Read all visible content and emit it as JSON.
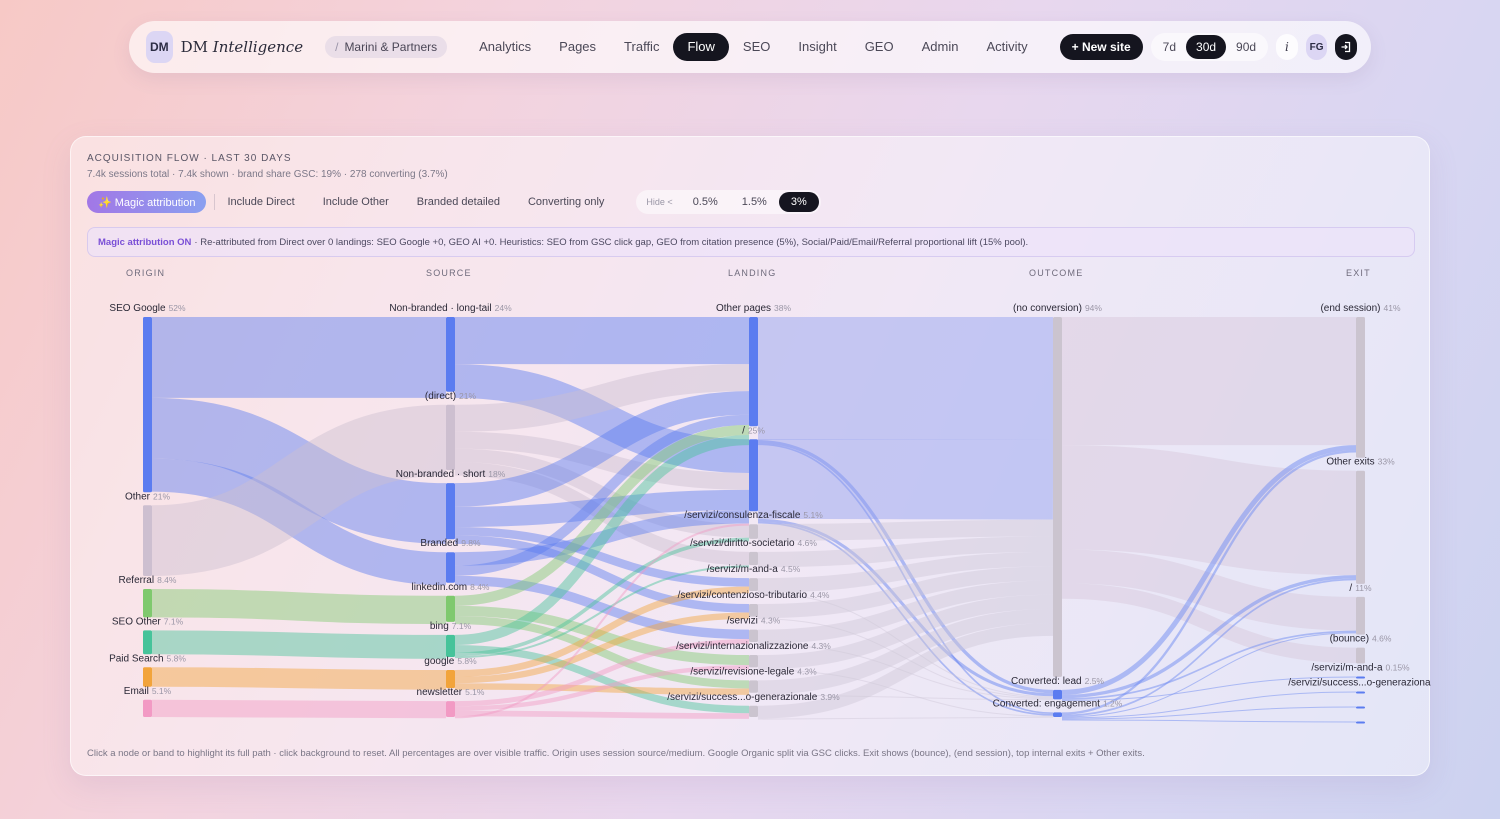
{
  "nav": {
    "logo": "DM",
    "brand_prefix": "DM ",
    "brand_italic": "Intelligence",
    "crumb_sep": "/",
    "crumb": "Marini & Partners",
    "tabs": [
      {
        "label": "Analytics",
        "active": false
      },
      {
        "label": "Pages",
        "active": false
      },
      {
        "label": "Traffic",
        "active": false
      },
      {
        "label": "Flow",
        "active": true
      },
      {
        "label": "SEO",
        "active": false
      },
      {
        "label": "Insight",
        "active": false
      },
      {
        "label": "GEO",
        "active": false
      },
      {
        "label": "Admin",
        "active": false
      },
      {
        "label": "Activity",
        "active": false
      }
    ],
    "new_site": "+ New site",
    "ranges": [
      {
        "label": "7d",
        "active": false
      },
      {
        "label": "30d",
        "active": true
      },
      {
        "label": "90d",
        "active": false
      }
    ],
    "info": "i",
    "user": "FG",
    "logout_icon": "logout-icon"
  },
  "card": {
    "title": "ACQUISITION FLOW · LAST 30 DAYS",
    "subtitle": "7.4k sessions total · 7.4k shown · brand share GSC: 19% · 278 converting (3.7%)",
    "magic_label": "✨ Magic attribution",
    "toggles": [
      "Include Direct",
      "Include Other",
      "Branded detailed",
      "Converting only"
    ],
    "hide_label": "Hide <",
    "hide_options": [
      {
        "label": "0.5%",
        "active": false
      },
      {
        "label": "1.5%",
        "active": false
      },
      {
        "label": "3%",
        "active": true
      }
    ],
    "notice_bold": "Magic attribution ON",
    "notice_text": "· Re-attributed from Direct over 0 landings: SEO Google +0, GEO AI +0. Heuristics: SEO from GSC click gap, GEO from citation presence (5%), Social/Paid/Email/Referral proportional lift (15% pool).",
    "columns": [
      "ORIGIN",
      "SOURCE",
      "LANDING",
      "OUTCOME",
      "EXIT"
    ],
    "footer": "Click a node or band to highlight its full path · click background to reset. All percentages are over visible traffic. Origin uses session source/medium. Google Organic split via GSC clicks. Exit shows (bounce), (end session), top internal exits + Other exits."
  },
  "colors": {
    "seo": "#5b7cf0",
    "other": "#cdbfd0",
    "referral": "#7fc96e",
    "seo_other": "#46c39a",
    "paid": "#f2a43b",
    "email": "#f29ac4",
    "neutral": "#cbc4cf",
    "lead": "#5b7cf0",
    "active_dark": "#15151f",
    "magic_purple": "#7a4fd6"
  },
  "chart_data": {
    "type": "sankey",
    "columns": [
      "ORIGIN",
      "SOURCE",
      "LANDING",
      "OUTCOME",
      "EXIT"
    ],
    "nodes": [
      {
        "id": "o_seo",
        "col": 0,
        "label": "SEO Google",
        "pct": "52%",
        "value": 52,
        "color": "#5b7cf0"
      },
      {
        "id": "o_other",
        "col": 0,
        "label": "Other",
        "pct": "21%",
        "value": 21,
        "color": "#cdbfd0"
      },
      {
        "id": "o_ref",
        "col": 0,
        "label": "Referral",
        "pct": "8.4%",
        "value": 8.4,
        "color": "#7fc96e"
      },
      {
        "id": "o_seoo",
        "col": 0,
        "label": "SEO Other",
        "pct": "7.1%",
        "value": 7.1,
        "color": "#46c39a"
      },
      {
        "id": "o_paid",
        "col": 0,
        "label": "Paid Search",
        "pct": "5.8%",
        "value": 5.8,
        "color": "#f2a43b"
      },
      {
        "id": "o_email",
        "col": 0,
        "label": "Email",
        "pct": "5.1%",
        "value": 5.1,
        "color": "#f29ac4"
      },
      {
        "id": "s_long",
        "col": 1,
        "label": "Non-branded · long-tail",
        "pct": "24%",
        "value": 24,
        "color": "#5b7cf0"
      },
      {
        "id": "s_direct",
        "col": 1,
        "label": "(direct)",
        "pct": "21%",
        "value": 21,
        "color": "#cdbfd0"
      },
      {
        "id": "s_short",
        "col": 1,
        "label": "Non-branded · short",
        "pct": "18%",
        "value": 18,
        "color": "#5b7cf0"
      },
      {
        "id": "s_brand",
        "col": 1,
        "label": "Branded",
        "pct": "9.8%",
        "value": 9.8,
        "color": "#5b7cf0"
      },
      {
        "id": "s_li",
        "col": 1,
        "label": "linkedin.com",
        "pct": "8.4%",
        "value": 8.4,
        "color": "#7fc96e"
      },
      {
        "id": "s_bing",
        "col": 1,
        "label": "bing",
        "pct": "7.1%",
        "value": 7.1,
        "color": "#46c39a"
      },
      {
        "id": "s_google",
        "col": 1,
        "label": "google",
        "pct": "5.8%",
        "value": 5.8,
        "color": "#f2a43b"
      },
      {
        "id": "s_news",
        "col": 1,
        "label": "newsletter",
        "pct": "5.1%",
        "value": 5.1,
        "color": "#f29ac4"
      },
      {
        "id": "l_other",
        "col": 2,
        "label": "Other pages",
        "pct": "38%",
        "value": 38,
        "color": "#5b7cf0"
      },
      {
        "id": "l_root",
        "col": 2,
        "label": "/",
        "pct": "25%",
        "value": 25,
        "color": "#5b7cf0"
      },
      {
        "id": "l_cf",
        "col": 2,
        "label": "/servizi/consulenza-fiscale",
        "pct": "5.1%",
        "value": 5.1,
        "color": "#cbc4cf"
      },
      {
        "id": "l_ds",
        "col": 2,
        "label": "/servizi/diritto-societario",
        "pct": "4.6%",
        "value": 4.6,
        "color": "#cbc4cf"
      },
      {
        "id": "l_ma",
        "col": 2,
        "label": "/servizi/m-and-a",
        "pct": "4.5%",
        "value": 4.5,
        "color": "#cbc4cf"
      },
      {
        "id": "l_ct",
        "col": 2,
        "label": "/servizi/contenzioso-tributario",
        "pct": "4.4%",
        "value": 4.4,
        "color": "#cbc4cf"
      },
      {
        "id": "l_serv",
        "col": 2,
        "label": "/servizi",
        "pct": "4.3%",
        "value": 4.3,
        "color": "#cbc4cf"
      },
      {
        "id": "l_int",
        "col": 2,
        "label": "/servizi/internazionalizzazione",
        "pct": "4.3%",
        "value": 4.3,
        "color": "#cbc4cf"
      },
      {
        "id": "l_rl",
        "col": 2,
        "label": "/servizi/revisione-legale",
        "pct": "4.3%",
        "value": 4.3,
        "color": "#cbc4cf"
      },
      {
        "id": "l_sg",
        "col": 2,
        "label": "/servizi/success...o-generazionale",
        "pct": "3.9%",
        "value": 3.9,
        "color": "#cbc4cf"
      },
      {
        "id": "c_none",
        "col": 3,
        "label": "(no conversion)",
        "pct": "94%",
        "value": 94,
        "color": "#cbc4cf"
      },
      {
        "id": "c_lead",
        "col": 3,
        "label": "Converted: lead",
        "pct": "2.5%",
        "value": 2.5,
        "color": "#5b7cf0"
      },
      {
        "id": "c_eng",
        "col": 3,
        "label": "Converted: engagement",
        "pct": "1.2%",
        "value": 1.2,
        "color": "#5b7cf0"
      },
      {
        "id": "e_end",
        "col": 4,
        "label": "(end session)",
        "pct": "41%",
        "value": 41,
        "color": "#cbc4cf"
      },
      {
        "id": "e_other",
        "col": 4,
        "label": "Other exits",
        "pct": "33%",
        "value": 33,
        "color": "#cbc4cf"
      },
      {
        "id": "e_root",
        "col": 4,
        "label": "/",
        "pct": "11%",
        "value": 11,
        "color": "#cbc4cf"
      },
      {
        "id": "e_bounce",
        "col": 4,
        "label": "(bounce)",
        "pct": "4.6%",
        "value": 4.6,
        "color": "#cbc4cf"
      },
      {
        "id": "e_ma",
        "col": 4,
        "label": "/servizi/m-and-a",
        "pct": "0.15%",
        "value": 0.15,
        "color": "#5b7cf0"
      },
      {
        "id": "e_sg",
        "col": 4,
        "label": "/servizi/success...o-generazional",
        "pct": "",
        "value": 0.1,
        "color": "#5b7cf0"
      },
      {
        "id": "e_x1",
        "col": 4,
        "label": "",
        "pct": "",
        "value": 0.1,
        "color": "#5b7cf0"
      },
      {
        "id": "e_x2",
        "col": 4,
        "label": "",
        "pct": "",
        "value": 0.1,
        "color": "#5b7cf0"
      }
    ],
    "links": [
      {
        "s": "o_seo",
        "t": "s_long",
        "v": 24
      },
      {
        "s": "o_seo",
        "t": "s_short",
        "v": 18
      },
      {
        "s": "o_seo",
        "t": "s_brand",
        "v": 9.8
      },
      {
        "s": "o_other",
        "t": "s_direct",
        "v": 21
      },
      {
        "s": "o_ref",
        "t": "s_li",
        "v": 8.4
      },
      {
        "s": "o_seoo",
        "t": "s_bing",
        "v": 7.1
      },
      {
        "s": "o_paid",
        "t": "s_google",
        "v": 5.8
      },
      {
        "s": "o_email",
        "t": "s_news",
        "v": 5.1
      },
      {
        "s": "s_long",
        "t": "l_other",
        "v": 14
      },
      {
        "s": "s_long",
        "t": "l_root",
        "v": 10
      },
      {
        "s": "s_direct",
        "t": "l_other",
        "v": 8
      },
      {
        "s": "s_direct",
        "t": "l_root",
        "v": 5
      },
      {
        "s": "s_direct",
        "t": "l_cf",
        "v": 4
      },
      {
        "s": "s_direct",
        "t": "l_ds",
        "v": 4
      },
      {
        "s": "s_short",
        "t": "l_other",
        "v": 7
      },
      {
        "s": "s_short",
        "t": "l_root",
        "v": 6
      },
      {
        "s": "s_short",
        "t": "l_ma",
        "v": 2.5
      },
      {
        "s": "s_short",
        "t": "l_ct",
        "v": 2.5
      },
      {
        "s": "s_brand",
        "t": "l_root",
        "v": 4
      },
      {
        "s": "s_brand",
        "t": "l_other",
        "v": 3
      },
      {
        "s": "s_brand",
        "t": "l_serv",
        "v": 2.8
      },
      {
        "s": "s_li",
        "t": "l_other",
        "v": 3
      },
      {
        "s": "s_li",
        "t": "l_int",
        "v": 3
      },
      {
        "s": "s_li",
        "t": "l_rl",
        "v": 2.4
      },
      {
        "s": "s_bing",
        "t": "l_other",
        "v": 3
      },
      {
        "s": "s_bing",
        "t": "l_sg",
        "v": 2.2
      },
      {
        "s": "s_bing",
        "t": "l_cf",
        "v": 1.1
      },
      {
        "s": "s_bing",
        "t": "l_ds",
        "v": 0.6
      },
      {
        "s": "s_google",
        "t": "l_ma",
        "v": 2
      },
      {
        "s": "s_google",
        "t": "l_ct",
        "v": 1.9
      },
      {
        "s": "s_google",
        "t": "l_rl",
        "v": 1.9
      },
      {
        "s": "s_news",
        "t": "l_serv",
        "v": 1.5
      },
      {
        "s": "s_news",
        "t": "l_int",
        "v": 1.3
      },
      {
        "s": "s_news",
        "t": "l_sg",
        "v": 1.7
      },
      {
        "s": "s_news",
        "t": "l_root",
        "v": 0.6
      },
      {
        "s": "l_other",
        "t": "c_none",
        "v": 36.5
      },
      {
        "s": "l_other",
        "t": "c_lead",
        "v": 1
      },
      {
        "s": "l_other",
        "t": "c_eng",
        "v": 0.5
      },
      {
        "s": "l_root",
        "t": "c_none",
        "v": 23.6
      },
      {
        "s": "l_root",
        "t": "c_lead",
        "v": 0.9
      },
      {
        "s": "l_root",
        "t": "c_eng",
        "v": 0.5
      },
      {
        "s": "l_cf",
        "t": "c_none",
        "v": 5
      },
      {
        "s": "l_ds",
        "t": "c_none",
        "v": 4.6
      },
      {
        "s": "l_ma",
        "t": "c_none",
        "v": 4.3
      },
      {
        "s": "l_ma",
        "t": "c_lead",
        "v": 0.2
      },
      {
        "s": "l_ct",
        "t": "c_none",
        "v": 4.2
      },
      {
        "s": "l_ct",
        "t": "c_lead",
        "v": 0.2
      },
      {
        "s": "l_serv",
        "t": "c_none",
        "v": 4.2
      },
      {
        "s": "l_serv",
        "t": "c_lead",
        "v": 0.1
      },
      {
        "s": "l_int",
        "t": "c_none",
        "v": 4.2
      },
      {
        "s": "l_int",
        "t": "c_eng",
        "v": 0.1
      },
      {
        "s": "l_rl",
        "t": "c_none",
        "v": 4.2
      },
      {
        "s": "l_rl",
        "t": "c_lead",
        "v": 0.1
      },
      {
        "s": "l_sg",
        "t": "c_none",
        "v": 3.8
      },
      {
        "s": "l_sg",
        "t": "c_eng",
        "v": 0.1
      },
      {
        "s": "c_none",
        "t": "e_end",
        "v": 38
      },
      {
        "s": "c_none",
        "t": "e_other",
        "v": 31
      },
      {
        "s": "c_none",
        "t": "e_root",
        "v": 10
      },
      {
        "s": "c_none",
        "t": "e_bounce",
        "v": 4.6
      },
      {
        "s": "c_lead",
        "t": "e_end",
        "v": 1.5
      },
      {
        "s": "c_lead",
        "t": "e_other",
        "v": 1
      },
      {
        "s": "c_lead",
        "t": "e_root",
        "v": 0.5
      },
      {
        "s": "c_lead",
        "t": "e_ma",
        "v": 0.15
      },
      {
        "s": "c_eng",
        "t": "e_end",
        "v": 0.7
      },
      {
        "s": "c_eng",
        "t": "e_other",
        "v": 0.5
      },
      {
        "s": "c_eng",
        "t": "e_root",
        "v": 0.3
      },
      {
        "s": "c_eng",
        "t": "e_sg",
        "v": 0.1
      },
      {
        "s": "c_eng",
        "t": "e_x1",
        "v": 0.1
      },
      {
        "s": "c_eng",
        "t": "e_x2",
        "v": 0.1
      }
    ]
  }
}
